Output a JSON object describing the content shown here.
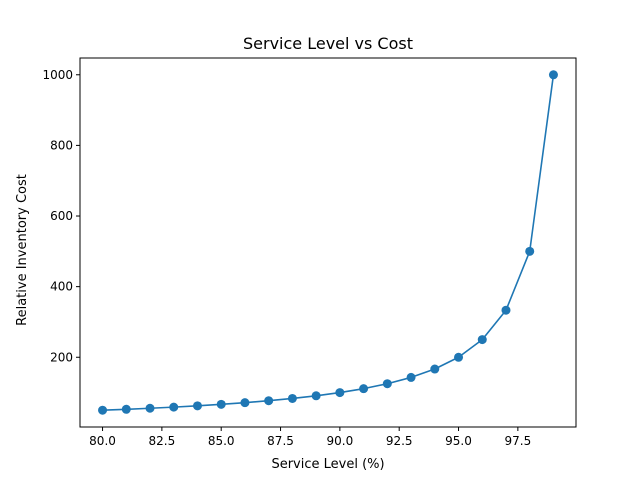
{
  "chart_data": {
    "type": "line",
    "title": "Service Level vs Cost",
    "xlabel": "Service Level (%)",
    "ylabel": "Relative Inventory Cost",
    "xlim": [
      79.05,
      99.95
    ],
    "ylim": [
      2.5,
      1047.5
    ],
    "xticks": [
      80.0,
      82.5,
      85.0,
      87.5,
      90.0,
      92.5,
      95.0,
      97.5
    ],
    "xtick_labels": [
      "80.0",
      "82.5",
      "85.0",
      "87.5",
      "90.0",
      "92.5",
      "95.0",
      "97.5"
    ],
    "yticks": [
      200,
      400,
      600,
      800,
      1000
    ],
    "ytick_labels": [
      "200",
      "400",
      "600",
      "800",
      "1000"
    ],
    "grid": false,
    "series": [
      {
        "color": "#1f77b4",
        "marker": "circle",
        "x": [
          80,
          81,
          82,
          83,
          84,
          85,
          86,
          87,
          88,
          89,
          90,
          91,
          92,
          93,
          94,
          95,
          96,
          97,
          98,
          99
        ],
        "y": [
          50,
          52.6,
          55.6,
          58.8,
          62.5,
          66.7,
          71.4,
          76.9,
          83.3,
          90.9,
          100,
          111.1,
          125,
          142.9,
          166.7,
          200,
          250,
          333.3,
          500,
          1000
        ]
      }
    ]
  }
}
